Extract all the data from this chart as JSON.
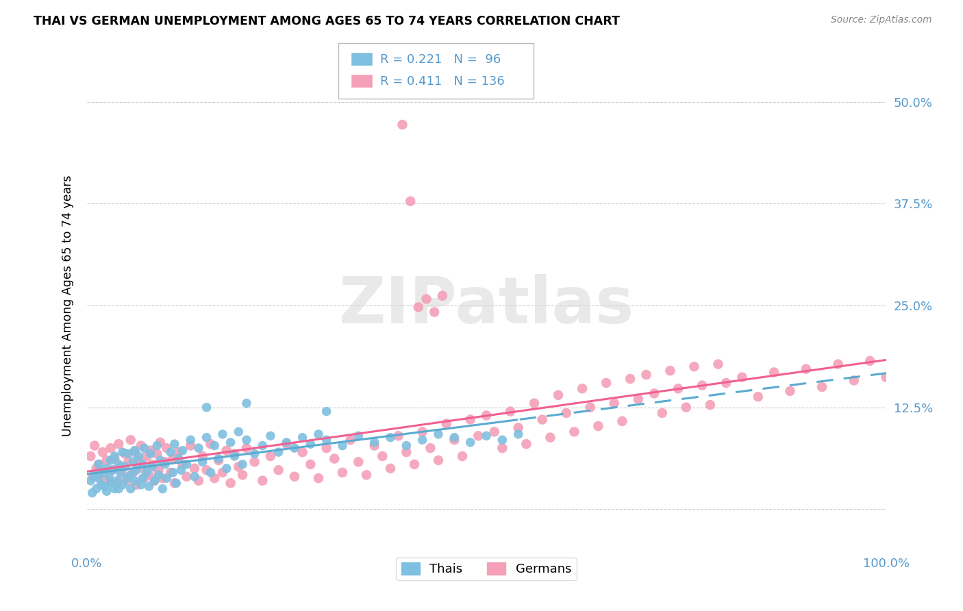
{
  "title": "THAI VS GERMAN UNEMPLOYMENT AMONG AGES 65 TO 74 YEARS CORRELATION CHART",
  "source": "Source: ZipAtlas.com",
  "ylabel": "Unemployment Among Ages 65 to 74 years",
  "thai_color": "#7fbfdf",
  "german_color": "#f4a0b8",
  "thai_trend_color": "#5aaad0",
  "german_trend_color": "#f06090",
  "tick_color": "#5599cc",
  "thai_R": 0.221,
  "thai_N": 96,
  "german_R": 0.411,
  "german_N": 136,
  "watermark": "ZIPatlas",
  "xlim": [
    0.0,
    1.0
  ],
  "ylim": [
    -0.05,
    0.55
  ],
  "ytick_positions": [
    0.0,
    0.125,
    0.25,
    0.375,
    0.5
  ],
  "yticklabels": [
    "",
    "12.5%",
    "25.0%",
    "37.5%",
    "50.0%"
  ],
  "thai_x": [
    0.005,
    0.007,
    0.01,
    0.012,
    0.015,
    0.015,
    0.018,
    0.02,
    0.022,
    0.025,
    0.025,
    0.028,
    0.03,
    0.03,
    0.032,
    0.035,
    0.035,
    0.038,
    0.04,
    0.04,
    0.042,
    0.045,
    0.045,
    0.048,
    0.05,
    0.052,
    0.055,
    0.055,
    0.058,
    0.06,
    0.06,
    0.062,
    0.065,
    0.068,
    0.07,
    0.07,
    0.072,
    0.075,
    0.078,
    0.08,
    0.082,
    0.085,
    0.088,
    0.09,
    0.092,
    0.095,
    0.098,
    0.1,
    0.105,
    0.108,
    0.11,
    0.112,
    0.115,
    0.118,
    0.12,
    0.125,
    0.13,
    0.135,
    0.14,
    0.145,
    0.15,
    0.155,
    0.16,
    0.165,
    0.17,
    0.175,
    0.18,
    0.185,
    0.19,
    0.195,
    0.2,
    0.21,
    0.22,
    0.23,
    0.24,
    0.25,
    0.26,
    0.27,
    0.28,
    0.29,
    0.3,
    0.32,
    0.34,
    0.36,
    0.38,
    0.4,
    0.42,
    0.44,
    0.46,
    0.48,
    0.5,
    0.52,
    0.54,
    0.3,
    0.2,
    0.15
  ],
  "thai_y": [
    0.035,
    0.02,
    0.042,
    0.025,
    0.038,
    0.055,
    0.03,
    0.045,
    0.028,
    0.05,
    0.022,
    0.04,
    0.06,
    0.032,
    0.048,
    0.025,
    0.065,
    0.035,
    0.055,
    0.025,
    0.045,
    0.07,
    0.03,
    0.052,
    0.038,
    0.068,
    0.042,
    0.025,
    0.058,
    0.035,
    0.072,
    0.048,
    0.065,
    0.03,
    0.055,
    0.038,
    0.075,
    0.045,
    0.028,
    0.068,
    0.052,
    0.035,
    0.078,
    0.042,
    0.06,
    0.025,
    0.055,
    0.038,
    0.07,
    0.045,
    0.08,
    0.032,
    0.062,
    0.048,
    0.072,
    0.055,
    0.085,
    0.04,
    0.075,
    0.058,
    0.088,
    0.045,
    0.078,
    0.062,
    0.092,
    0.05,
    0.082,
    0.065,
    0.095,
    0.055,
    0.085,
    0.068,
    0.078,
    0.09,
    0.07,
    0.082,
    0.075,
    0.088,
    0.08,
    0.092,
    0.085,
    0.078,
    0.09,
    0.082,
    0.088,
    0.078,
    0.085,
    0.092,
    0.088,
    0.082,
    0.09,
    0.085,
    0.092,
    0.12,
    0.13,
    0.125
  ],
  "german_x": [
    0.005,
    0.008,
    0.01,
    0.012,
    0.015,
    0.018,
    0.02,
    0.022,
    0.025,
    0.028,
    0.03,
    0.032,
    0.035,
    0.038,
    0.04,
    0.042,
    0.045,
    0.048,
    0.05,
    0.052,
    0.055,
    0.058,
    0.06,
    0.062,
    0.065,
    0.068,
    0.07,
    0.072,
    0.075,
    0.078,
    0.08,
    0.082,
    0.085,
    0.088,
    0.09,
    0.092,
    0.095,
    0.098,
    0.1,
    0.105,
    0.108,
    0.11,
    0.115,
    0.12,
    0.125,
    0.13,
    0.135,
    0.14,
    0.145,
    0.15,
    0.155,
    0.16,
    0.165,
    0.17,
    0.175,
    0.18,
    0.185,
    0.19,
    0.195,
    0.2,
    0.21,
    0.22,
    0.23,
    0.24,
    0.25,
    0.26,
    0.27,
    0.28,
    0.29,
    0.3,
    0.31,
    0.32,
    0.33,
    0.34,
    0.35,
    0.36,
    0.37,
    0.38,
    0.39,
    0.4,
    0.41,
    0.42,
    0.43,
    0.44,
    0.45,
    0.46,
    0.47,
    0.48,
    0.49,
    0.5,
    0.51,
    0.52,
    0.53,
    0.54,
    0.55,
    0.56,
    0.57,
    0.58,
    0.59,
    0.6,
    0.61,
    0.62,
    0.63,
    0.64,
    0.65,
    0.66,
    0.67,
    0.68,
    0.69,
    0.7,
    0.71,
    0.72,
    0.73,
    0.74,
    0.75,
    0.76,
    0.77,
    0.78,
    0.79,
    0.8,
    0.82,
    0.84,
    0.86,
    0.88,
    0.9,
    0.92,
    0.94,
    0.96,
    0.98,
    1.0,
    0.395,
    0.405,
    0.415,
    0.425,
    0.435,
    0.445
  ],
  "german_y": [
    0.065,
    0.04,
    0.078,
    0.05,
    0.055,
    0.038,
    0.07,
    0.045,
    0.06,
    0.035,
    0.075,
    0.048,
    0.062,
    0.032,
    0.08,
    0.052,
    0.042,
    0.068,
    0.035,
    0.058,
    0.085,
    0.045,
    0.07,
    0.03,
    0.06,
    0.078,
    0.05,
    0.038,
    0.065,
    0.042,
    0.072,
    0.055,
    0.035,
    0.068,
    0.048,
    0.082,
    0.038,
    0.058,
    0.075,
    0.045,
    0.062,
    0.032,
    0.07,
    0.055,
    0.04,
    0.078,
    0.05,
    0.035,
    0.065,
    0.048,
    0.08,
    0.038,
    0.06,
    0.045,
    0.072,
    0.032,
    0.068,
    0.052,
    0.042,
    0.075,
    0.058,
    0.035,
    0.065,
    0.048,
    0.08,
    0.04,
    0.07,
    0.055,
    0.038,
    0.075,
    0.062,
    0.045,
    0.085,
    0.058,
    0.042,
    0.078,
    0.065,
    0.05,
    0.09,
    0.07,
    0.055,
    0.095,
    0.075,
    0.06,
    0.105,
    0.085,
    0.065,
    0.11,
    0.09,
    0.115,
    0.095,
    0.075,
    0.12,
    0.1,
    0.08,
    0.13,
    0.11,
    0.088,
    0.14,
    0.118,
    0.095,
    0.148,
    0.125,
    0.102,
    0.155,
    0.13,
    0.108,
    0.16,
    0.135,
    0.165,
    0.142,
    0.118,
    0.17,
    0.148,
    0.125,
    0.175,
    0.152,
    0.128,
    0.178,
    0.155,
    0.162,
    0.138,
    0.168,
    0.145,
    0.172,
    0.15,
    0.178,
    0.158,
    0.182,
    0.162,
    0.472,
    0.378,
    0.248,
    0.258,
    0.242,
    0.262
  ]
}
